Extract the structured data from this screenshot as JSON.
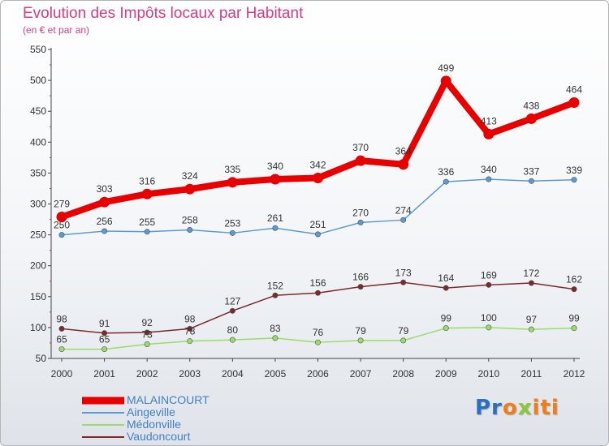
{
  "chart_data": {
    "type": "line",
    "title": "Evolution des Impôts locaux par Habitant",
    "subtitle": "(en € et par an)",
    "x": [
      "2000",
      "2001",
      "2002",
      "2003",
      "2004",
      "2005",
      "2006",
      "2007",
      "2008",
      "2009",
      "2010",
      "2011",
      "2012"
    ],
    "ylim": [
      50,
      550
    ],
    "yticks": [
      "50",
      "100",
      "150",
      "200",
      "250",
      "300",
      "350",
      "400",
      "450",
      "500",
      "550"
    ],
    "grid": false,
    "legend_position": "bottom-left",
    "series": [
      {
        "name": "MALAINCOURT",
        "color": "#e80000",
        "values": [
          279,
          303,
          316,
          324,
          335,
          340,
          342,
          370,
          364,
          499,
          413,
          438,
          464
        ],
        "labels": [
          "279",
          "303",
          "316",
          "324",
          "335",
          "340",
          "342",
          "370",
          "364",
          "499",
          "413",
          "438",
          "464"
        ]
      },
      {
        "name": "Aingeville",
        "color": "#5a9bd4",
        "values": [
          250,
          256,
          255,
          258,
          253,
          261,
          251,
          270,
          274,
          336,
          340,
          337,
          339
        ],
        "labels": [
          "250",
          "256",
          "255",
          "258",
          "253",
          "261",
          "251",
          "270",
          "274",
          "336",
          "340",
          "337",
          "339"
        ]
      },
      {
        "name": "Médonville",
        "color": "#99dd66",
        "values": [
          65,
          65,
          73,
          78,
          80,
          83,
          76,
          79,
          79,
          99,
          100,
          97,
          99
        ],
        "labels": [
          "65",
          "65",
          "73",
          "78",
          "80",
          "83",
          "76",
          "79",
          "79",
          "99",
          "100",
          "97",
          "99"
        ]
      },
      {
        "name": "Vaudoncourt",
        "color": "#7a2a2a",
        "values": [
          98,
          91,
          92,
          98,
          127,
          152,
          156,
          166,
          173,
          164,
          169,
          172,
          162
        ],
        "labels": [
          "98",
          "91",
          "92",
          "98",
          "127",
          "152",
          "156",
          "166",
          "173",
          "164",
          "169",
          "172",
          "162"
        ]
      }
    ]
  },
  "legend": {
    "items": [
      {
        "label": "MALAINCOURT"
      },
      {
        "label": "Aingeville"
      },
      {
        "label": "Médonville"
      },
      {
        "label": "Vaudoncourt"
      }
    ]
  },
  "logo": {
    "p1": "Pr",
    "p2": "o",
    "p3": "x",
    "p4": "iti"
  },
  "colors": {
    "title": "#d43d85",
    "axis": "#444444",
    "legend_text": "#3f7fc7"
  }
}
